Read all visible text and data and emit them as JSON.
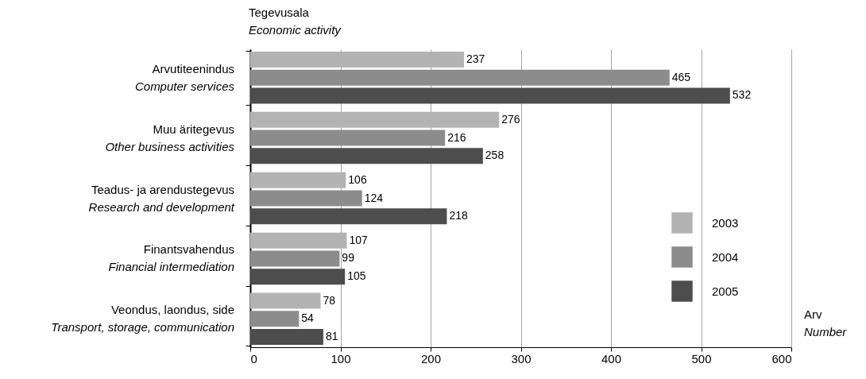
{
  "chart_data": {
    "type": "bar",
    "orientation": "horizontal",
    "ylabel": "Tegevusala\nEconomic activity",
    "xlabel": "Arv\nNumber",
    "categories": [
      "Arvutiteenindus\nComputer services",
      "Muu äritegevus\nOther business activities",
      "Teadus- ja arendustegevus\nResearch and development",
      "Finantsvahendus\nFinancial intermediation",
      "Veondus, laondus, side\nTransport, storage, communication"
    ],
    "series": [
      {
        "name": "2003",
        "color": "#b3b3b3",
        "values": [
          237,
          276,
          106,
          107,
          78
        ]
      },
      {
        "name": "2004",
        "color": "#8c8c8c",
        "values": [
          465,
          216,
          124,
          99,
          54
        ]
      },
      {
        "name": "2005",
        "color": "#4d4d4d",
        "values": [
          532,
          258,
          218,
          105,
          81
        ]
      }
    ],
    "xlim": [
      0,
      600
    ],
    "xticks": [
      0,
      100,
      200,
      300,
      400,
      500,
      600
    ],
    "grid": "x",
    "legend": "bottom right",
    "data_labels": true
  }
}
